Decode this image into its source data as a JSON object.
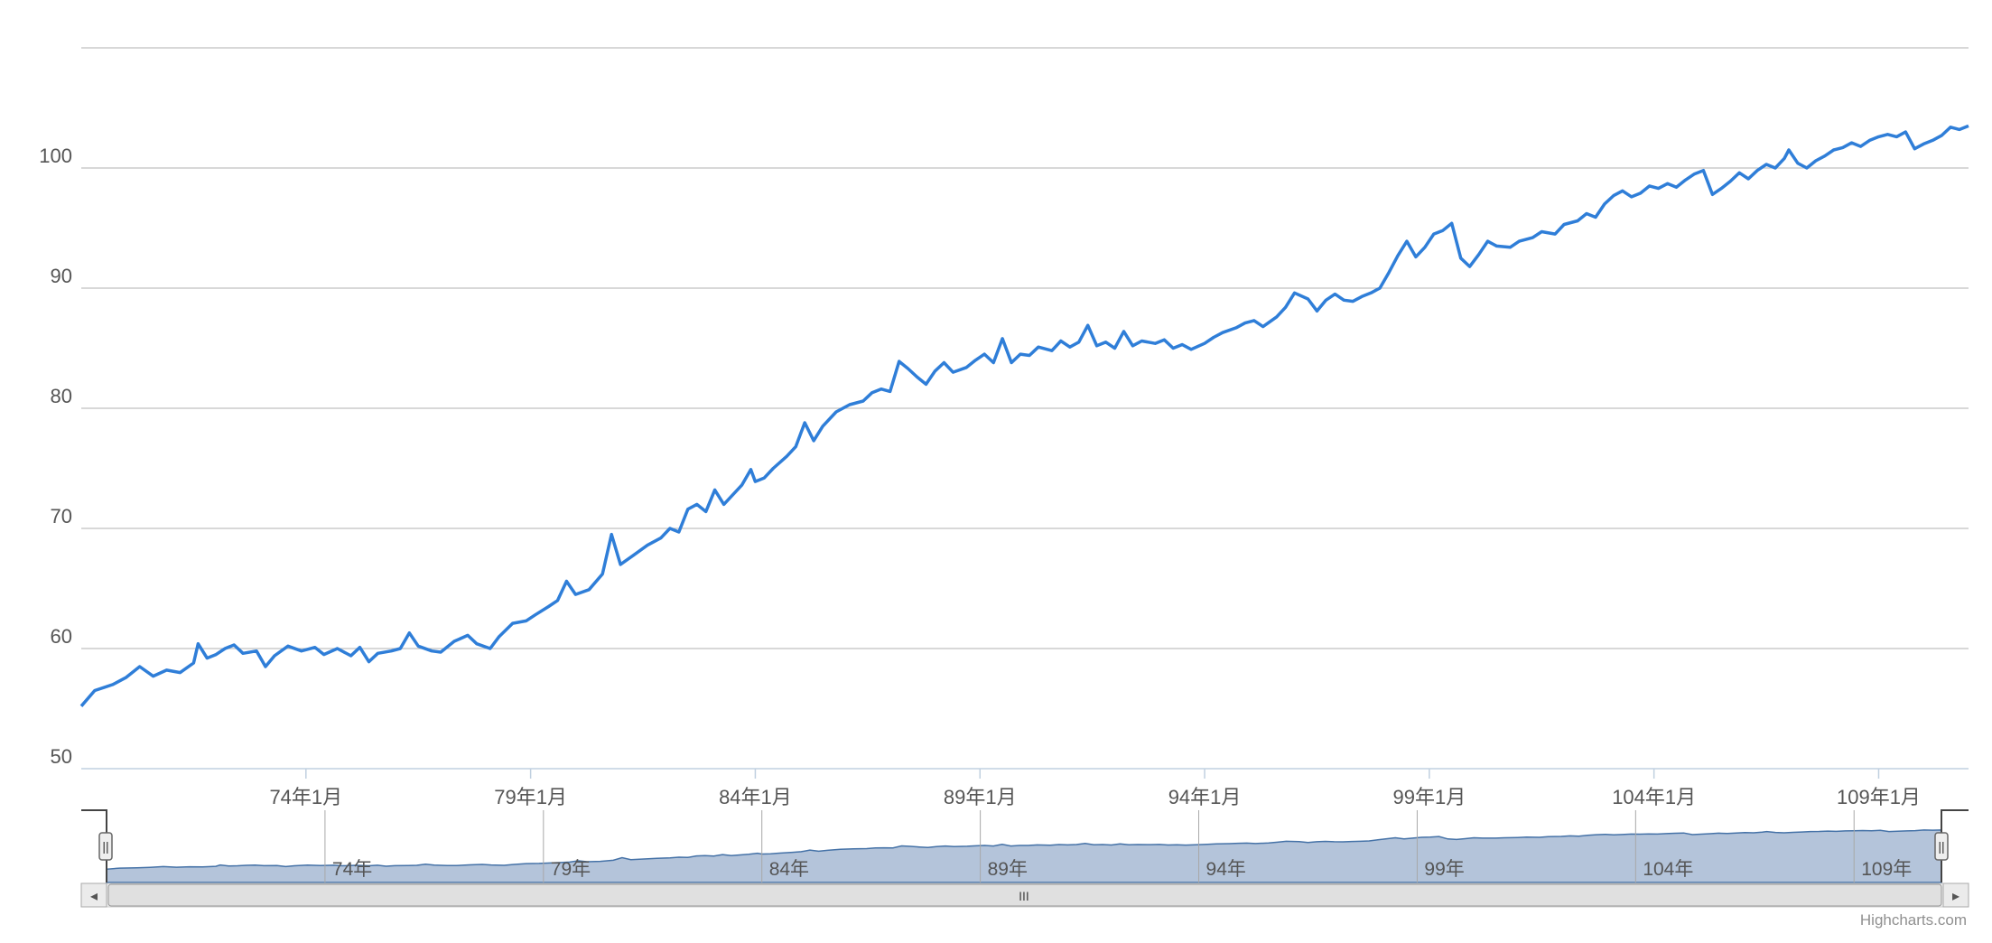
{
  "chart_data": {
    "type": "line",
    "title": "",
    "xlabel": "",
    "ylabel": "",
    "ylim": [
      50,
      110
    ],
    "yticks": [
      50,
      60,
      70,
      80,
      90,
      100
    ],
    "xlim": [
      69.0,
      110.0
    ],
    "xticks": [
      {
        "value": 74,
        "label": "74年1月"
      },
      {
        "value": 79,
        "label": "79年1月"
      },
      {
        "value": 84,
        "label": "84年1月"
      },
      {
        "value": 89,
        "label": "89年1月"
      },
      {
        "value": 94,
        "label": "94年1月"
      },
      {
        "value": 99,
        "label": "99年1月"
      },
      {
        "value": 104,
        "label": "104年1月"
      },
      {
        "value": 109,
        "label": "109年1月"
      }
    ],
    "navigator_ticks": [
      {
        "value": 74,
        "label": "74年"
      },
      {
        "value": 79,
        "label": "79年"
      },
      {
        "value": 84,
        "label": "84年"
      },
      {
        "value": 89,
        "label": "89年"
      },
      {
        "value": 94,
        "label": "94年"
      },
      {
        "value": 99,
        "label": "99年"
      },
      {
        "value": 104,
        "label": "104年"
      },
      {
        "value": 109,
        "label": "109年"
      }
    ],
    "grid": true,
    "legend": "none",
    "series": [
      {
        "color": "#2f7ed8",
        "points": [
          [
            69.0,
            55.2
          ],
          [
            69.3,
            56.5
          ],
          [
            69.7,
            57.0
          ],
          [
            70.0,
            57.6
          ],
          [
            70.3,
            58.5
          ],
          [
            70.6,
            57.7
          ],
          [
            70.9,
            58.2
          ],
          [
            71.2,
            58.0
          ],
          [
            71.5,
            58.8
          ],
          [
            71.6,
            60.4
          ],
          [
            71.8,
            59.2
          ],
          [
            72.0,
            59.5
          ],
          [
            72.2,
            60.0
          ],
          [
            72.4,
            60.3
          ],
          [
            72.6,
            59.6
          ],
          [
            72.9,
            59.8
          ],
          [
            73.1,
            58.5
          ],
          [
            73.3,
            59.4
          ],
          [
            73.6,
            60.2
          ],
          [
            73.9,
            59.8
          ],
          [
            74.2,
            60.1
          ],
          [
            74.4,
            59.5
          ],
          [
            74.7,
            60.0
          ],
          [
            75.0,
            59.4
          ],
          [
            75.2,
            60.1
          ],
          [
            75.4,
            58.9
          ],
          [
            75.6,
            59.6
          ],
          [
            75.9,
            59.8
          ],
          [
            76.1,
            60.0
          ],
          [
            76.3,
            61.3
          ],
          [
            76.5,
            60.2
          ],
          [
            76.8,
            59.8
          ],
          [
            77.0,
            59.7
          ],
          [
            77.3,
            60.6
          ],
          [
            77.6,
            61.1
          ],
          [
            77.8,
            60.4
          ],
          [
            78.1,
            60.0
          ],
          [
            78.3,
            61.0
          ],
          [
            78.6,
            62.1
          ],
          [
            78.9,
            62.3
          ],
          [
            79.1,
            62.8
          ],
          [
            79.4,
            63.5
          ],
          [
            79.6,
            64.0
          ],
          [
            79.8,
            65.6
          ],
          [
            80.0,
            64.5
          ],
          [
            80.3,
            64.9
          ],
          [
            80.6,
            66.2
          ],
          [
            80.8,
            69.5
          ],
          [
            81.0,
            67.0
          ],
          [
            81.3,
            67.8
          ],
          [
            81.6,
            68.6
          ],
          [
            81.9,
            69.2
          ],
          [
            82.1,
            70.0
          ],
          [
            82.3,
            69.7
          ],
          [
            82.5,
            71.6
          ],
          [
            82.7,
            72.0
          ],
          [
            82.9,
            71.4
          ],
          [
            83.1,
            73.2
          ],
          [
            83.3,
            72.0
          ],
          [
            83.5,
            72.8
          ],
          [
            83.7,
            73.6
          ],
          [
            83.9,
            74.9
          ],
          [
            84.0,
            73.9
          ],
          [
            84.2,
            74.2
          ],
          [
            84.4,
            75.0
          ],
          [
            84.7,
            76.0
          ],
          [
            84.9,
            76.8
          ],
          [
            85.1,
            78.8
          ],
          [
            85.3,
            77.3
          ],
          [
            85.5,
            78.5
          ],
          [
            85.8,
            79.7
          ],
          [
            86.1,
            80.3
          ],
          [
            86.4,
            80.6
          ],
          [
            86.6,
            81.3
          ],
          [
            86.8,
            81.6
          ],
          [
            87.0,
            81.4
          ],
          [
            87.2,
            83.9
          ],
          [
            87.4,
            83.3
          ],
          [
            87.6,
            82.6
          ],
          [
            87.8,
            82.0
          ],
          [
            88.0,
            83.1
          ],
          [
            88.2,
            83.8
          ],
          [
            88.4,
            83.0
          ],
          [
            88.7,
            83.4
          ],
          [
            88.9,
            84.0
          ],
          [
            89.1,
            84.5
          ],
          [
            89.3,
            83.8
          ],
          [
            89.5,
            85.8
          ],
          [
            89.7,
            83.8
          ],
          [
            89.9,
            84.5
          ],
          [
            90.1,
            84.4
          ],
          [
            90.3,
            85.1
          ],
          [
            90.6,
            84.8
          ],
          [
            90.8,
            85.6
          ],
          [
            91.0,
            85.1
          ],
          [
            91.2,
            85.5
          ],
          [
            91.4,
            86.9
          ],
          [
            91.6,
            85.2
          ],
          [
            91.8,
            85.5
          ],
          [
            92.0,
            85.0
          ],
          [
            92.2,
            86.4
          ],
          [
            92.4,
            85.2
          ],
          [
            92.6,
            85.6
          ],
          [
            92.9,
            85.4
          ],
          [
            93.1,
            85.7
          ],
          [
            93.3,
            85.0
          ],
          [
            93.5,
            85.3
          ],
          [
            93.7,
            84.9
          ],
          [
            94.0,
            85.4
          ],
          [
            94.2,
            85.9
          ],
          [
            94.4,
            86.3
          ],
          [
            94.7,
            86.7
          ],
          [
            94.9,
            87.1
          ],
          [
            95.1,
            87.3
          ],
          [
            95.3,
            86.8
          ],
          [
            95.6,
            87.6
          ],
          [
            95.8,
            88.4
          ],
          [
            96.0,
            89.6
          ],
          [
            96.3,
            89.1
          ],
          [
            96.5,
            88.1
          ],
          [
            96.7,
            89.0
          ],
          [
            96.9,
            89.5
          ],
          [
            97.1,
            89.0
          ],
          [
            97.3,
            88.9
          ],
          [
            97.5,
            89.3
          ],
          [
            97.7,
            89.6
          ],
          [
            97.9,
            90.0
          ],
          [
            98.1,
            91.3
          ],
          [
            98.3,
            92.7
          ],
          [
            98.5,
            93.9
          ],
          [
            98.7,
            92.6
          ],
          [
            98.9,
            93.4
          ],
          [
            99.1,
            94.5
          ],
          [
            99.3,
            94.8
          ],
          [
            99.5,
            95.4
          ],
          [
            99.7,
            92.5
          ],
          [
            99.9,
            91.8
          ],
          [
            100.1,
            92.8
          ],
          [
            100.3,
            93.9
          ],
          [
            100.5,
            93.5
          ],
          [
            100.8,
            93.4
          ],
          [
            101.0,
            93.9
          ],
          [
            101.3,
            94.2
          ],
          [
            101.5,
            94.7
          ],
          [
            101.8,
            94.5
          ],
          [
            102.0,
            95.3
          ],
          [
            102.3,
            95.6
          ],
          [
            102.5,
            96.2
          ],
          [
            102.7,
            95.9
          ],
          [
            102.9,
            97.0
          ],
          [
            103.1,
            97.7
          ],
          [
            103.3,
            98.1
          ],
          [
            103.5,
            97.6
          ],
          [
            103.7,
            97.9
          ],
          [
            103.9,
            98.5
          ],
          [
            104.1,
            98.3
          ],
          [
            104.3,
            98.7
          ],
          [
            104.5,
            98.4
          ],
          [
            104.7,
            99.0
          ],
          [
            104.9,
            99.5
          ],
          [
            105.1,
            99.8
          ],
          [
            105.3,
            97.8
          ],
          [
            105.5,
            98.3
          ],
          [
            105.7,
            98.9
          ],
          [
            105.9,
            99.6
          ],
          [
            106.1,
            99.1
          ],
          [
            106.3,
            99.8
          ],
          [
            106.5,
            100.3
          ],
          [
            106.7,
            100.0
          ],
          [
            106.9,
            100.8
          ],
          [
            107.0,
            101.5
          ],
          [
            107.2,
            100.4
          ],
          [
            107.4,
            100.0
          ],
          [
            107.6,
            100.6
          ],
          [
            107.8,
            101.0
          ],
          [
            108.0,
            101.5
          ],
          [
            108.2,
            101.7
          ],
          [
            108.4,
            102.1
          ],
          [
            108.6,
            101.8
          ],
          [
            108.8,
            102.3
          ],
          [
            109.0,
            102.6
          ],
          [
            109.2,
            102.8
          ],
          [
            109.4,
            102.6
          ],
          [
            109.6,
            103.0
          ],
          [
            109.8,
            101.6
          ],
          [
            110.0,
            102.0
          ],
          [
            110.2,
            102.3
          ],
          [
            110.4,
            102.7
          ],
          [
            110.6,
            103.4
          ],
          [
            110.8,
            103.2
          ],
          [
            111.0,
            103.5
          ]
        ]
      }
    ]
  },
  "navigator": {
    "left_arrow": "◂",
    "right_arrow": "▸",
    "grip": "III",
    "handle_grip": "||"
  },
  "credits": "Highcharts.com",
  "colors": {
    "line": "#2f7ed8",
    "navigator_fill": "#b4c4da",
    "navigator_line": "#4572a7",
    "grid": "#c0c0c0"
  }
}
